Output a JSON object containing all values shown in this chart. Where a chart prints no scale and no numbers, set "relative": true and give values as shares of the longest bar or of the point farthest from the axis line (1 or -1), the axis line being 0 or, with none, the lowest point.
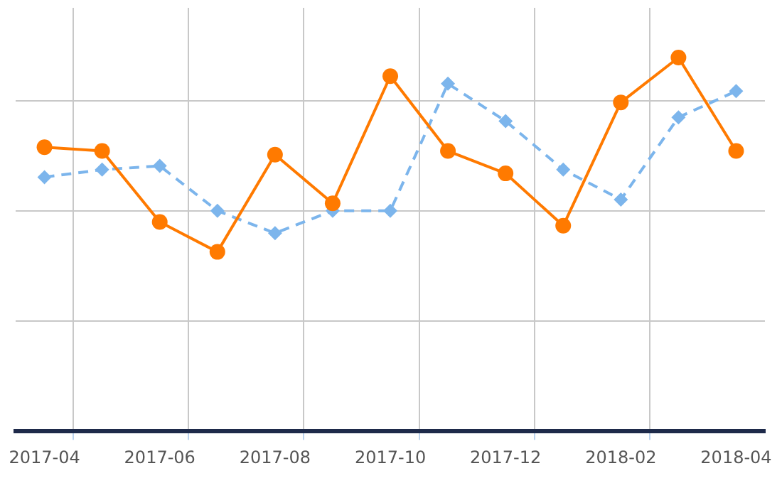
{
  "chart_data": {
    "type": "line",
    "relative": true,
    "grid": true,
    "legend": false,
    "categories": [
      "2017-04",
      null,
      "2017-06",
      null,
      "2017-08",
      null,
      "2017-10",
      null,
      "2017-12",
      null,
      "2018-02",
      null,
      "2018-04"
    ],
    "series": [
      {
        "color": "#ff7a00",
        "marker": "circle",
        "line_style": "solid",
        "values": [
          0.76,
          0.75,
          0.56,
          0.48,
          0.74,
          0.61,
          0.95,
          0.75,
          0.69,
          0.55,
          0.88,
          1,
          0.75
        ]
      },
      {
        "color": "#7cb5ec",
        "marker": "diamond",
        "line_style": "dashed",
        "values": [
          0.68,
          0.7,
          0.71,
          0.59,
          0.53,
          0.59,
          0.59,
          0.93,
          0.83,
          0.7,
          0.62,
          0.84,
          0.91
        ]
      }
    ]
  }
}
